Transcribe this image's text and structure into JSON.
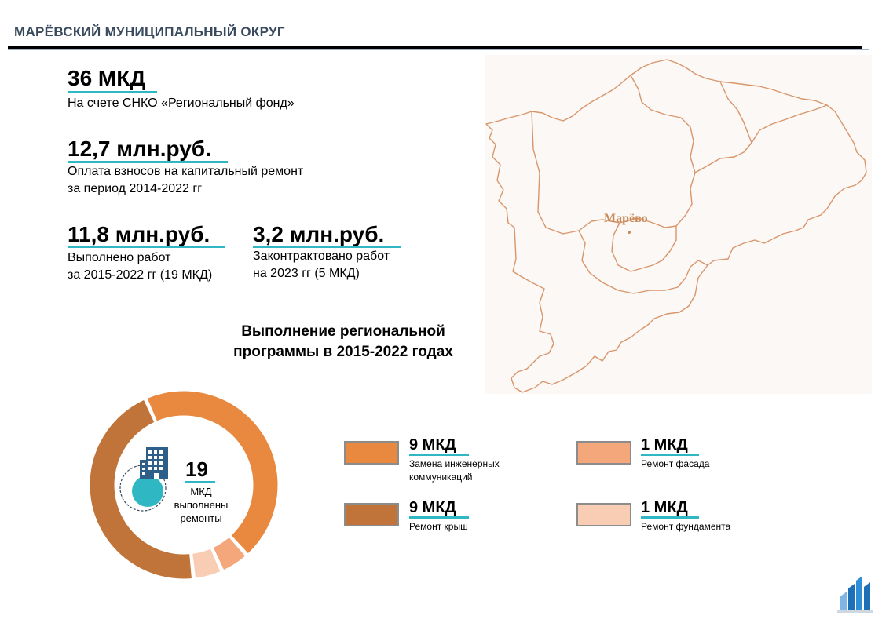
{
  "header": {
    "title": "МАРЁВСКИЙ МУНИЦИПАЛЬНЫЙ ОКРУГ"
  },
  "stats": {
    "mkd_count": {
      "value": "36 МКД",
      "label": "На счете СНКО «Региональный фонд»"
    },
    "contributions": {
      "value": "12,7 млн.руб.",
      "label": "Оплата взносов на капитальный ремонт\nза период 2014-2022 гг"
    },
    "completed": {
      "value": "11,8 млн.руб.",
      "label": "Выполнено работ\nза 2015-2022 гг (19 МКД)"
    },
    "contracted": {
      "value": "3,2 млн.руб.",
      "label": "Законтрактовано работ\nна 2023 гг (5 МКД)"
    }
  },
  "program": {
    "title": "Выполнение региональной\nпрограммы в 2015-2022  годах"
  },
  "map": {
    "town": "Марёво"
  },
  "donut": {
    "count": "19",
    "label": "МКД\nвыполнены\nремонты"
  },
  "legend": [
    {
      "value": "9 МКД",
      "desc": "Замена инженерных\nкоммуникаций"
    },
    {
      "value": "9 МКД",
      "desc": "Ремонт крыш"
    },
    {
      "value": "1 МКД",
      "desc": "Ремонт фасада"
    },
    {
      "value": "1 МКД",
      "desc": "Ремонт фундамента"
    }
  ],
  "chart_data": {
    "type": "pie",
    "total": 19,
    "categories": [
      "Замена инженерных коммуникаций",
      "Ремонт крыш",
      "Ремонт фасада",
      "Ремонт фундамента"
    ],
    "values": [
      9,
      9,
      1,
      1
    ],
    "colors": [
      "#e8893f",
      "#c0743a",
      "#f4a77a",
      "#f9cdb4"
    ]
  },
  "colors": {
    "accent": "#2fb8c4",
    "header_text": "#3a4a5e",
    "map_border": "#d9956a"
  }
}
